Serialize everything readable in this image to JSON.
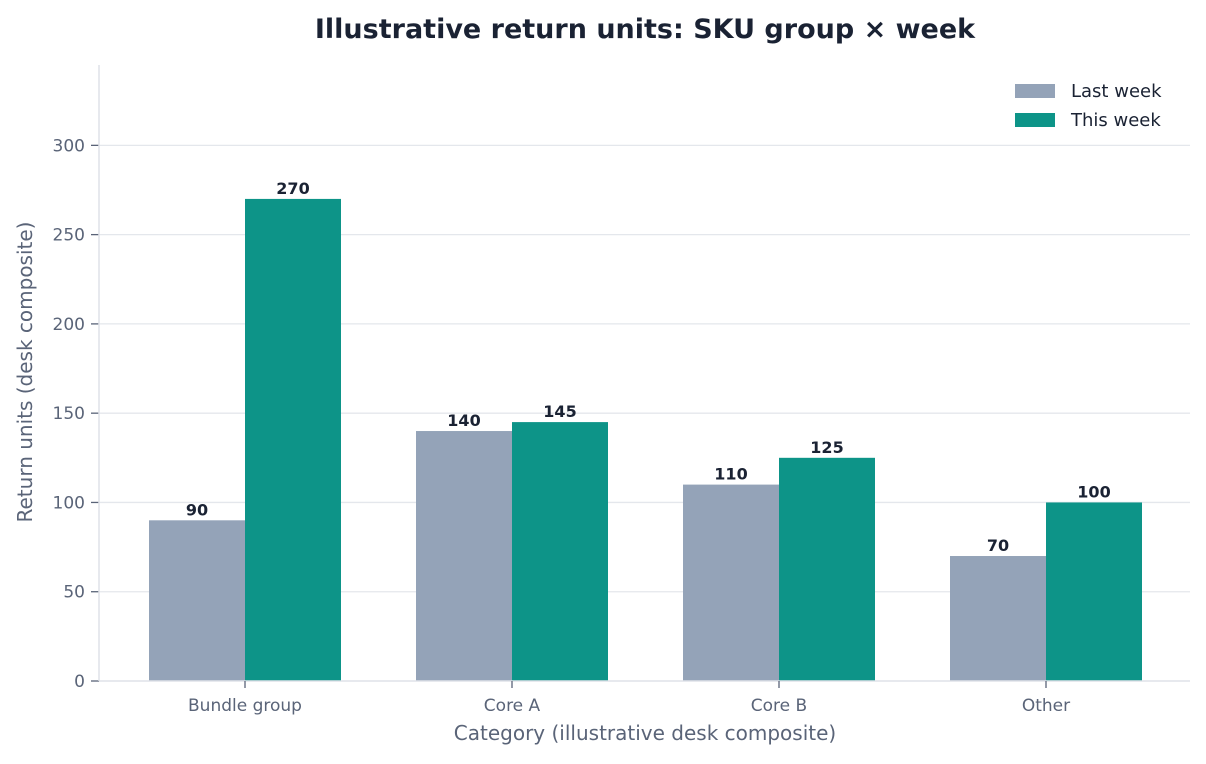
{
  "chart_data": {
    "type": "bar",
    "title": "Illustrative return units: SKU group × week",
    "xlabel": "Category (illustrative desk composite)",
    "ylabel": "Return units (desk composite)",
    "categories": [
      "Bundle group",
      "Core A",
      "Core B",
      "Other"
    ],
    "series": [
      {
        "name": "Last week",
        "values": [
          90,
          140,
          110,
          70
        ],
        "color": "#94a3b8"
      },
      {
        "name": "This week",
        "values": [
          270,
          145,
          125,
          100
        ],
        "color": "#0d9488"
      }
    ],
    "ylim": [
      0,
      345
    ],
    "yticks": [
      0,
      50,
      100,
      150,
      200,
      250,
      300
    ],
    "grid": true,
    "legend_position": "top-right",
    "data_labels": true
  }
}
